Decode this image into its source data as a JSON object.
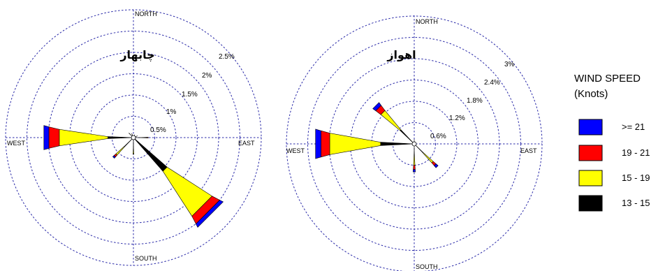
{
  "chart_data": [
    {
      "type": "wind-rose",
      "title": "چابهار",
      "direction_labels": {
        "north": "NORTH",
        "south": "SOUTH",
        "east": "EAST",
        "west": "WEST"
      },
      "ring_values": [
        0.5,
        1,
        1.5,
        2,
        2.5
      ],
      "ring_labels": [
        "0.5%",
        "1%",
        "1.5%",
        "2%",
        "2.5%"
      ],
      "max_radius_value": 3.0,
      "petals": [
        {
          "direction_deg": 90,
          "segments": [
            0.18,
            0.13,
            0.03,
            0.01
          ]
        },
        {
          "direction_deg": 135,
          "segments": [
            1.05,
            1.25,
            0.2,
            0.09
          ]
        },
        {
          "direction_deg": 180,
          "segments": [
            0.25,
            0.13,
            0.01,
            0.0
          ]
        },
        {
          "direction_deg": 225,
          "segments": [
            0.3,
            0.26,
            0.06,
            0.04
          ]
        },
        {
          "direction_deg": 270,
          "segments": [
            0.6,
            1.15,
            0.25,
            0.12
          ]
        },
        {
          "direction_deg": 315,
          "segments": [
            0.05,
            0.08,
            0.02,
            0.0
          ]
        },
        {
          "direction_deg": 337.5,
          "segments": [
            0.0,
            0.08,
            0.02,
            0.0
          ]
        },
        {
          "direction_deg": 22.5,
          "segments": [
            0.0,
            0.07,
            0.0,
            0.0
          ]
        },
        {
          "direction_deg": 67.5,
          "segments": [
            0.03,
            0.07,
            0.0,
            0.0
          ]
        }
      ]
    },
    {
      "type": "wind-rose",
      "title": "اهواز",
      "direction_labels": {
        "north": "NORTH",
        "south": "SOUTH",
        "east": "EAST",
        "west": "WEST"
      },
      "ring_values": [
        0.6,
        1.2,
        1.8,
        2.4,
        3
      ],
      "ring_labels": [
        "0.6%",
        "1.2%",
        "1.8%",
        "2.4%",
        "3%"
      ],
      "max_radius_value": 3.6,
      "petals": [
        {
          "direction_deg": 0,
          "segments": [
            0.1,
            0.03,
            0.0,
            0.0
          ]
        },
        {
          "direction_deg": 135,
          "segments": [
            0.33,
            0.4,
            0.1,
            0.08
          ]
        },
        {
          "direction_deg": 180,
          "segments": [
            0.22,
            0.38,
            0.12,
            0.07
          ]
        },
        {
          "direction_deg": 270,
          "segments": [
            0.95,
            1.45,
            0.25,
            0.16
          ]
        },
        {
          "direction_deg": 315,
          "segments": [
            0.55,
            0.7,
            0.18,
            0.1
          ]
        }
      ]
    }
  ],
  "legend": {
    "title_line1": "WIND SPEED",
    "title_line2": "(Knots)",
    "items": [
      {
        "label": ">= 21",
        "color": "#0000ff"
      },
      {
        "label": "19 - 21",
        "color": "#ff0000"
      },
      {
        "label": "15 - 19",
        "color": "#ffff00"
      },
      {
        "label": "13 - 15",
        "color": "#000000"
      }
    ]
  },
  "segment_colors": [
    "#000000",
    "#ffff00",
    "#ff0000",
    "#0000ff"
  ]
}
